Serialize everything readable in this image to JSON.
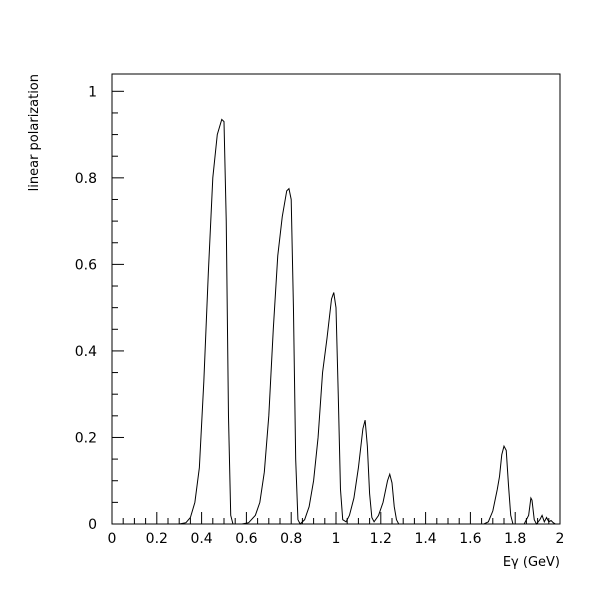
{
  "chart_data": {
    "type": "line",
    "title": "",
    "xlabel": "Eγ (GeV)",
    "ylabel": "linear polarization",
    "xlim": [
      0,
      2
    ],
    "ylim": [
      0,
      1.04
    ],
    "grid": false,
    "x_ticks": [
      "0",
      "0.2",
      "0.4",
      "0.6",
      "0.8",
      "1",
      "1.2",
      "1.4",
      "1.6",
      "1.8",
      "2"
    ],
    "y_ticks": [
      "0",
      "0.2",
      "0.4",
      "0.6",
      "0.8",
      "1"
    ],
    "line_color": "#000000",
    "series": [
      {
        "name": "",
        "points": [
          [
            0.0,
            0.0
          ],
          [
            0.3,
            0.0
          ],
          [
            0.33,
            0.003
          ],
          [
            0.35,
            0.015
          ],
          [
            0.37,
            0.05
          ],
          [
            0.39,
            0.13
          ],
          [
            0.41,
            0.33
          ],
          [
            0.43,
            0.58
          ],
          [
            0.45,
            0.8
          ],
          [
            0.47,
            0.9
          ],
          [
            0.49,
            0.935
          ],
          [
            0.5,
            0.93
          ],
          [
            0.51,
            0.7
          ],
          [
            0.52,
            0.25
          ],
          [
            0.53,
            0.02
          ],
          [
            0.54,
            0.0
          ],
          [
            0.58,
            0.0
          ],
          [
            0.61,
            0.003
          ],
          [
            0.64,
            0.02
          ],
          [
            0.66,
            0.05
          ],
          [
            0.68,
            0.12
          ],
          [
            0.7,
            0.25
          ],
          [
            0.72,
            0.45
          ],
          [
            0.74,
            0.62
          ],
          [
            0.76,
            0.71
          ],
          [
            0.78,
            0.77
          ],
          [
            0.79,
            0.775
          ],
          [
            0.8,
            0.75
          ],
          [
            0.81,
            0.5
          ],
          [
            0.82,
            0.15
          ],
          [
            0.83,
            0.01
          ],
          [
            0.84,
            0.0
          ],
          [
            0.86,
            0.01
          ],
          [
            0.88,
            0.04
          ],
          [
            0.9,
            0.1
          ],
          [
            0.92,
            0.2
          ],
          [
            0.94,
            0.35
          ],
          [
            0.96,
            0.43
          ],
          [
            0.98,
            0.52
          ],
          [
            0.99,
            0.535
          ],
          [
            1.0,
            0.5
          ],
          [
            1.01,
            0.3
          ],
          [
            1.02,
            0.08
          ],
          [
            1.03,
            0.01
          ],
          [
            1.045,
            0.005
          ],
          [
            1.06,
            0.02
          ],
          [
            1.08,
            0.06
          ],
          [
            1.1,
            0.13
          ],
          [
            1.12,
            0.22
          ],
          [
            1.13,
            0.24
          ],
          [
            1.14,
            0.18
          ],
          [
            1.15,
            0.07
          ],
          [
            1.16,
            0.015
          ],
          [
            1.17,
            0.005
          ],
          [
            1.19,
            0.02
          ],
          [
            1.21,
            0.05
          ],
          [
            1.23,
            0.1
          ],
          [
            1.24,
            0.115
          ],
          [
            1.25,
            0.095
          ],
          [
            1.26,
            0.04
          ],
          [
            1.27,
            0.01
          ],
          [
            1.28,
            0.0
          ],
          [
            1.66,
            0.0
          ],
          [
            1.68,
            0.005
          ],
          [
            1.7,
            0.03
          ],
          [
            1.72,
            0.08
          ],
          [
            1.73,
            0.11
          ],
          [
            1.74,
            0.16
          ],
          [
            1.75,
            0.18
          ],
          [
            1.76,
            0.17
          ],
          [
            1.77,
            0.09
          ],
          [
            1.78,
            0.02
          ],
          [
            1.79,
            0.0
          ],
          [
            1.84,
            0.0
          ],
          [
            1.86,
            0.02
          ],
          [
            1.87,
            0.06
          ],
          [
            1.875,
            0.055
          ],
          [
            1.885,
            0.01
          ],
          [
            1.895,
            0.0
          ],
          [
            1.91,
            0.01
          ],
          [
            1.92,
            0.02
          ],
          [
            1.93,
            0.005
          ],
          [
            1.94,
            0.015
          ],
          [
            1.95,
            0.005
          ],
          [
            1.96,
            0.008
          ],
          [
            1.97,
            0.003
          ],
          [
            1.98,
            0.0
          ],
          [
            2.0,
            0.0
          ]
        ]
      }
    ]
  }
}
